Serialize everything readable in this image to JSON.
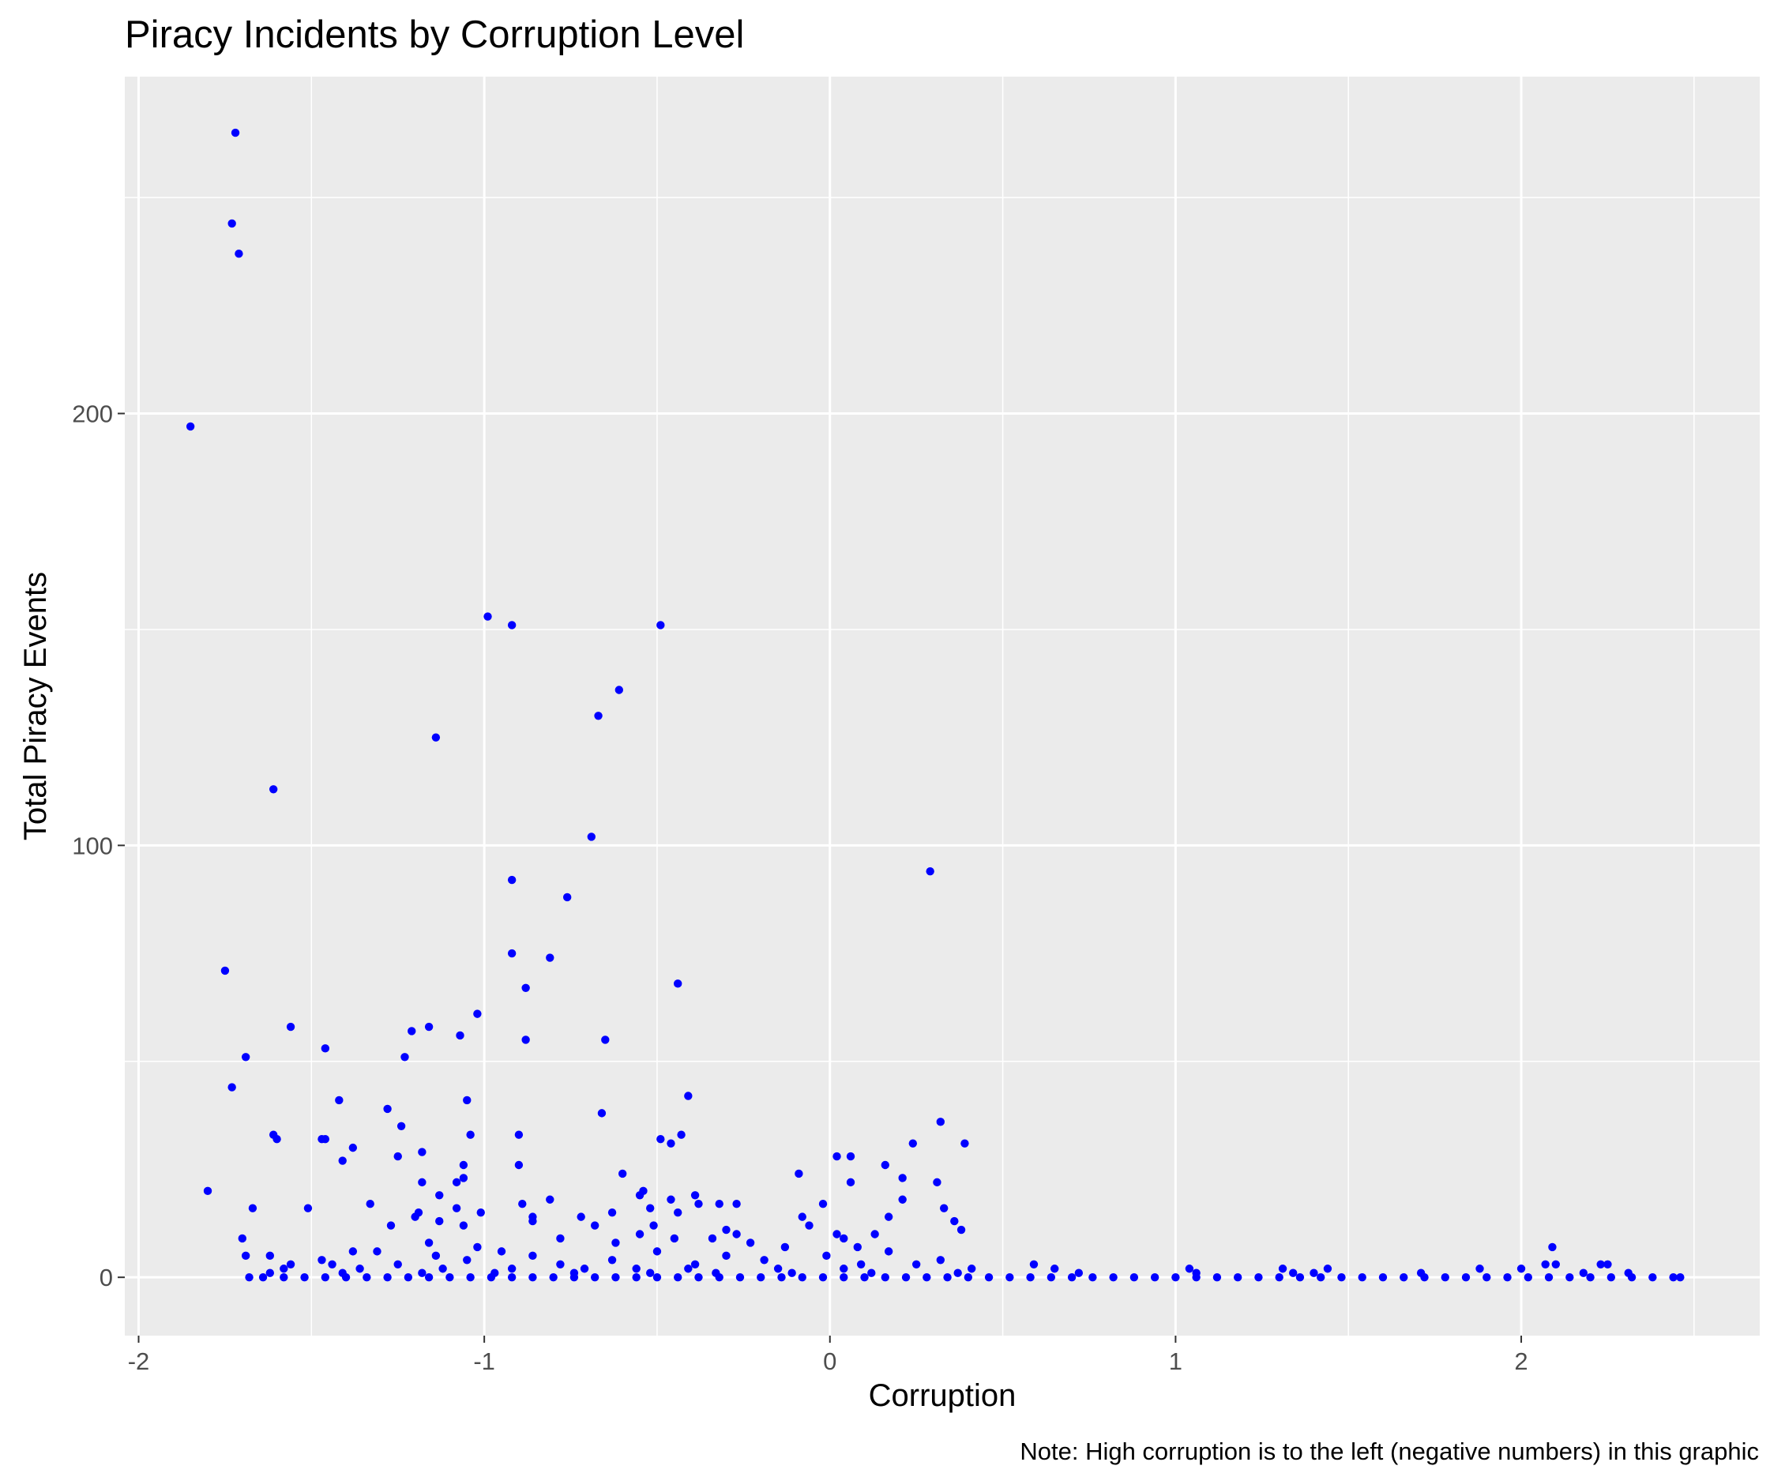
{
  "chart_data": {
    "type": "scatter",
    "title": "Piracy Incidents by Corruption Level",
    "xlabel": "Corruption",
    "ylabel": "Total Piracy Events",
    "caption": "Note: High corruption is to the left (negative numbers) in this graphic",
    "xlim": [
      -2.04,
      2.69
    ],
    "ylim": [
      -13.5,
      278
    ],
    "x_ticks": [
      -2,
      -1,
      0,
      1,
      2
    ],
    "x_tick_labels": [
      "-2",
      "-1",
      "0",
      "1",
      "2"
    ],
    "y_ticks": [
      0,
      100,
      200
    ],
    "y_tick_labels": [
      "0",
      "100",
      "200"
    ],
    "grid": true,
    "point_color": "#0000ff",
    "panel_color": "#ebebeb",
    "grid_color": "#ffffff",
    "points": [
      [
        -1.72,
        265
      ],
      [
        -1.73,
        244
      ],
      [
        -1.71,
        237
      ],
      [
        -1.85,
        197
      ],
      [
        -1.61,
        113
      ],
      [
        -1.75,
        71
      ],
      [
        -1.56,
        58
      ],
      [
        -1.69,
        51
      ],
      [
        -1.73,
        44
      ],
      [
        -1.8,
        20
      ],
      [
        -1.67,
        16
      ],
      [
        -1.51,
        16
      ],
      [
        -1.61,
        33
      ],
      [
        -1.6,
        32
      ],
      [
        -0.99,
        153
      ],
      [
        -0.92,
        151
      ],
      [
        -0.49,
        151
      ],
      [
        -0.61,
        136
      ],
      [
        -0.67,
        130
      ],
      [
        -1.14,
        125
      ],
      [
        -0.69,
        102
      ],
      [
        -0.92,
        92
      ],
      [
        -0.76,
        88
      ],
      [
        0.29,
        94
      ],
      [
        -0.92,
        75
      ],
      [
        -0.81,
        74
      ],
      [
        -0.44,
        68
      ],
      [
        -0.88,
        67
      ],
      [
        -1.02,
        61
      ],
      [
        -1.16,
        58
      ],
      [
        -1.21,
        57
      ],
      [
        -1.07,
        56
      ],
      [
        -0.88,
        55
      ],
      [
        -0.65,
        55
      ],
      [
        -1.46,
        53
      ],
      [
        -1.23,
        51
      ],
      [
        -1.42,
        41
      ],
      [
        -1.05,
        41
      ],
      [
        -0.41,
        42
      ],
      [
        -1.28,
        39
      ],
      [
        -0.66,
        38
      ],
      [
        -1.24,
        35
      ],
      [
        0.32,
        36
      ],
      [
        -1.46,
        32
      ],
      [
        -1.47,
        32
      ],
      [
        -1.04,
        33
      ],
      [
        -0.9,
        33
      ],
      [
        -0.43,
        33
      ],
      [
        -0.49,
        32
      ],
      [
        -0.46,
        31
      ],
      [
        0.39,
        31
      ],
      [
        -1.38,
        30
      ],
      [
        0.24,
        31
      ],
      [
        -1.18,
        29
      ],
      [
        -1.25,
        28
      ],
      [
        0.02,
        28
      ],
      [
        0.06,
        28
      ],
      [
        -1.41,
        27
      ],
      [
        -1.06,
        26
      ],
      [
        -0.9,
        26
      ],
      [
        0.16,
        26
      ],
      [
        -1.06,
        23
      ],
      [
        -0.6,
        24
      ],
      [
        -0.09,
        24
      ],
      [
        0.21,
        23
      ],
      [
        -1.18,
        22
      ],
      [
        -1.08,
        22
      ],
      [
        0.06,
        22
      ],
      [
        0.31,
        22
      ],
      [
        -0.54,
        20
      ],
      [
        -1.13,
        19
      ],
      [
        -0.55,
        19
      ],
      [
        -0.81,
        18
      ],
      [
        -0.39,
        19
      ],
      [
        0.21,
        18
      ],
      [
        -0.46,
        18
      ],
      [
        -0.89,
        17
      ],
      [
        -1.33,
        17
      ],
      [
        -0.38,
        17
      ],
      [
        -0.32,
        17
      ],
      [
        -0.27,
        17
      ],
      [
        -0.02,
        17
      ],
      [
        -1.08,
        16
      ],
      [
        0.33,
        16
      ],
      [
        -0.52,
        16
      ],
      [
        -0.44,
        15
      ],
      [
        -1.19,
        15
      ],
      [
        -1.01,
        15
      ],
      [
        -0.63,
        15
      ],
      [
        -0.86,
        14
      ],
      [
        -1.2,
        14
      ],
      [
        -0.72,
        14
      ],
      [
        -0.08,
        14
      ],
      [
        0.17,
        14
      ],
      [
        -0.86,
        13
      ],
      [
        0.36,
        13
      ],
      [
        -1.13,
        13
      ],
      [
        -0.51,
        12
      ],
      [
        -0.68,
        12
      ],
      [
        -0.06,
        12
      ],
      [
        0.38,
        11
      ],
      [
        -1.27,
        12
      ],
      [
        -0.55,
        10
      ],
      [
        -1.06,
        12
      ],
      [
        -0.3,
        11
      ],
      [
        0.02,
        10
      ],
      [
        -0.27,
        10
      ],
      [
        0.13,
        10
      ],
      [
        -1.7,
        9
      ],
      [
        -0.34,
        9
      ],
      [
        0.04,
        9
      ],
      [
        -0.78,
        9
      ],
      [
        -0.45,
        9
      ],
      [
        -0.62,
        8
      ],
      [
        -0.23,
        8
      ],
      [
        -1.16,
        8
      ],
      [
        -1.02,
        7
      ],
      [
        -0.13,
        7
      ],
      [
        0.08,
        7
      ],
      [
        -0.95,
        6
      ],
      [
        -1.38,
        6
      ],
      [
        -1.31,
        6
      ],
      [
        -0.5,
        6
      ],
      [
        0.17,
        6
      ],
      [
        -1.69,
        5
      ],
      [
        -1.62,
        5
      ],
      [
        -1.14,
        5
      ],
      [
        -0.86,
        5
      ],
      [
        -0.3,
        5
      ],
      [
        -0.01,
        5
      ],
      [
        -1.47,
        4
      ],
      [
        -1.05,
        4
      ],
      [
        -0.63,
        4
      ],
      [
        -0.19,
        4
      ],
      [
        0.32,
        4
      ],
      [
        -1.56,
        3
      ],
      [
        -1.44,
        3
      ],
      [
        -1.25,
        3
      ],
      [
        -0.78,
        3
      ],
      [
        -0.39,
        3
      ],
      [
        0.09,
        3
      ],
      [
        0.25,
        3
      ],
      [
        0.59,
        3
      ],
      [
        -1.58,
        2
      ],
      [
        -1.36,
        2
      ],
      [
        -1.12,
        2
      ],
      [
        -0.92,
        2
      ],
      [
        -0.71,
        2
      ],
      [
        -0.56,
        2
      ],
      [
        -0.41,
        2
      ],
      [
        -0.15,
        2
      ],
      [
        0.04,
        2
      ],
      [
        0.41,
        2
      ],
      [
        0.65,
        2
      ],
      [
        1.04,
        2
      ],
      [
        1.31,
        2
      ],
      [
        1.44,
        2
      ],
      [
        1.88,
        2
      ],
      [
        2.0,
        2
      ],
      [
        2.07,
        3
      ],
      [
        2.09,
        7
      ],
      [
        2.1,
        3
      ],
      [
        2.23,
        3
      ],
      [
        2.25,
        3
      ],
      [
        -1.62,
        1
      ],
      [
        -1.41,
        1
      ],
      [
        -1.18,
        1
      ],
      [
        -0.97,
        1
      ],
      [
        -0.74,
        1
      ],
      [
        -0.52,
        1
      ],
      [
        -0.33,
        1
      ],
      [
        -0.11,
        1
      ],
      [
        0.12,
        1
      ],
      [
        0.37,
        1
      ],
      [
        0.72,
        1
      ],
      [
        1.06,
        1
      ],
      [
        1.34,
        1
      ],
      [
        1.4,
        1
      ],
      [
        1.71,
        1
      ],
      [
        2.18,
        1
      ],
      [
        2.31,
        1
      ],
      [
        -1.68,
        0
      ],
      [
        -1.64,
        0
      ],
      [
        -1.58,
        0
      ],
      [
        -1.52,
        0
      ],
      [
        -1.46,
        0
      ],
      [
        -1.4,
        0
      ],
      [
        -1.34,
        0
      ],
      [
        -1.28,
        0
      ],
      [
        -1.22,
        0
      ],
      [
        -1.16,
        0
      ],
      [
        -1.1,
        0
      ],
      [
        -1.04,
        0
      ],
      [
        -0.98,
        0
      ],
      [
        -0.92,
        0
      ],
      [
        -0.86,
        0
      ],
      [
        -0.8,
        0
      ],
      [
        -0.74,
        0
      ],
      [
        -0.68,
        0
      ],
      [
        -0.62,
        0
      ],
      [
        -0.56,
        0
      ],
      [
        -0.5,
        0
      ],
      [
        -0.44,
        0
      ],
      [
        -0.38,
        0
      ],
      [
        -0.32,
        0
      ],
      [
        -0.26,
        0
      ],
      [
        -0.2,
        0
      ],
      [
        -0.14,
        0
      ],
      [
        -0.08,
        0
      ],
      [
        -0.02,
        0
      ],
      [
        0.04,
        0
      ],
      [
        0.1,
        0
      ],
      [
        0.16,
        0
      ],
      [
        0.22,
        0
      ],
      [
        0.28,
        0
      ],
      [
        0.34,
        0
      ],
      [
        0.4,
        0
      ],
      [
        0.46,
        0
      ],
      [
        0.52,
        0
      ],
      [
        0.58,
        0
      ],
      [
        0.64,
        0
      ],
      [
        0.7,
        0
      ],
      [
        0.76,
        0
      ],
      [
        0.82,
        0
      ],
      [
        0.88,
        0
      ],
      [
        0.94,
        0
      ],
      [
        1.0,
        0
      ],
      [
        1.06,
        0
      ],
      [
        1.12,
        0
      ],
      [
        1.18,
        0
      ],
      [
        1.24,
        0
      ],
      [
        1.3,
        0
      ],
      [
        1.36,
        0
      ],
      [
        1.42,
        0
      ],
      [
        1.48,
        0
      ],
      [
        1.54,
        0
      ],
      [
        1.6,
        0
      ],
      [
        1.66,
        0
      ],
      [
        1.72,
        0
      ],
      [
        1.78,
        0
      ],
      [
        1.84,
        0
      ],
      [
        1.9,
        0
      ],
      [
        1.96,
        0
      ],
      [
        2.02,
        0
      ],
      [
        2.08,
        0
      ],
      [
        2.14,
        0
      ],
      [
        2.2,
        0
      ],
      [
        2.26,
        0
      ],
      [
        2.32,
        0
      ],
      [
        2.38,
        0
      ],
      [
        2.44,
        0
      ],
      [
        2.46,
        0
      ]
    ]
  }
}
